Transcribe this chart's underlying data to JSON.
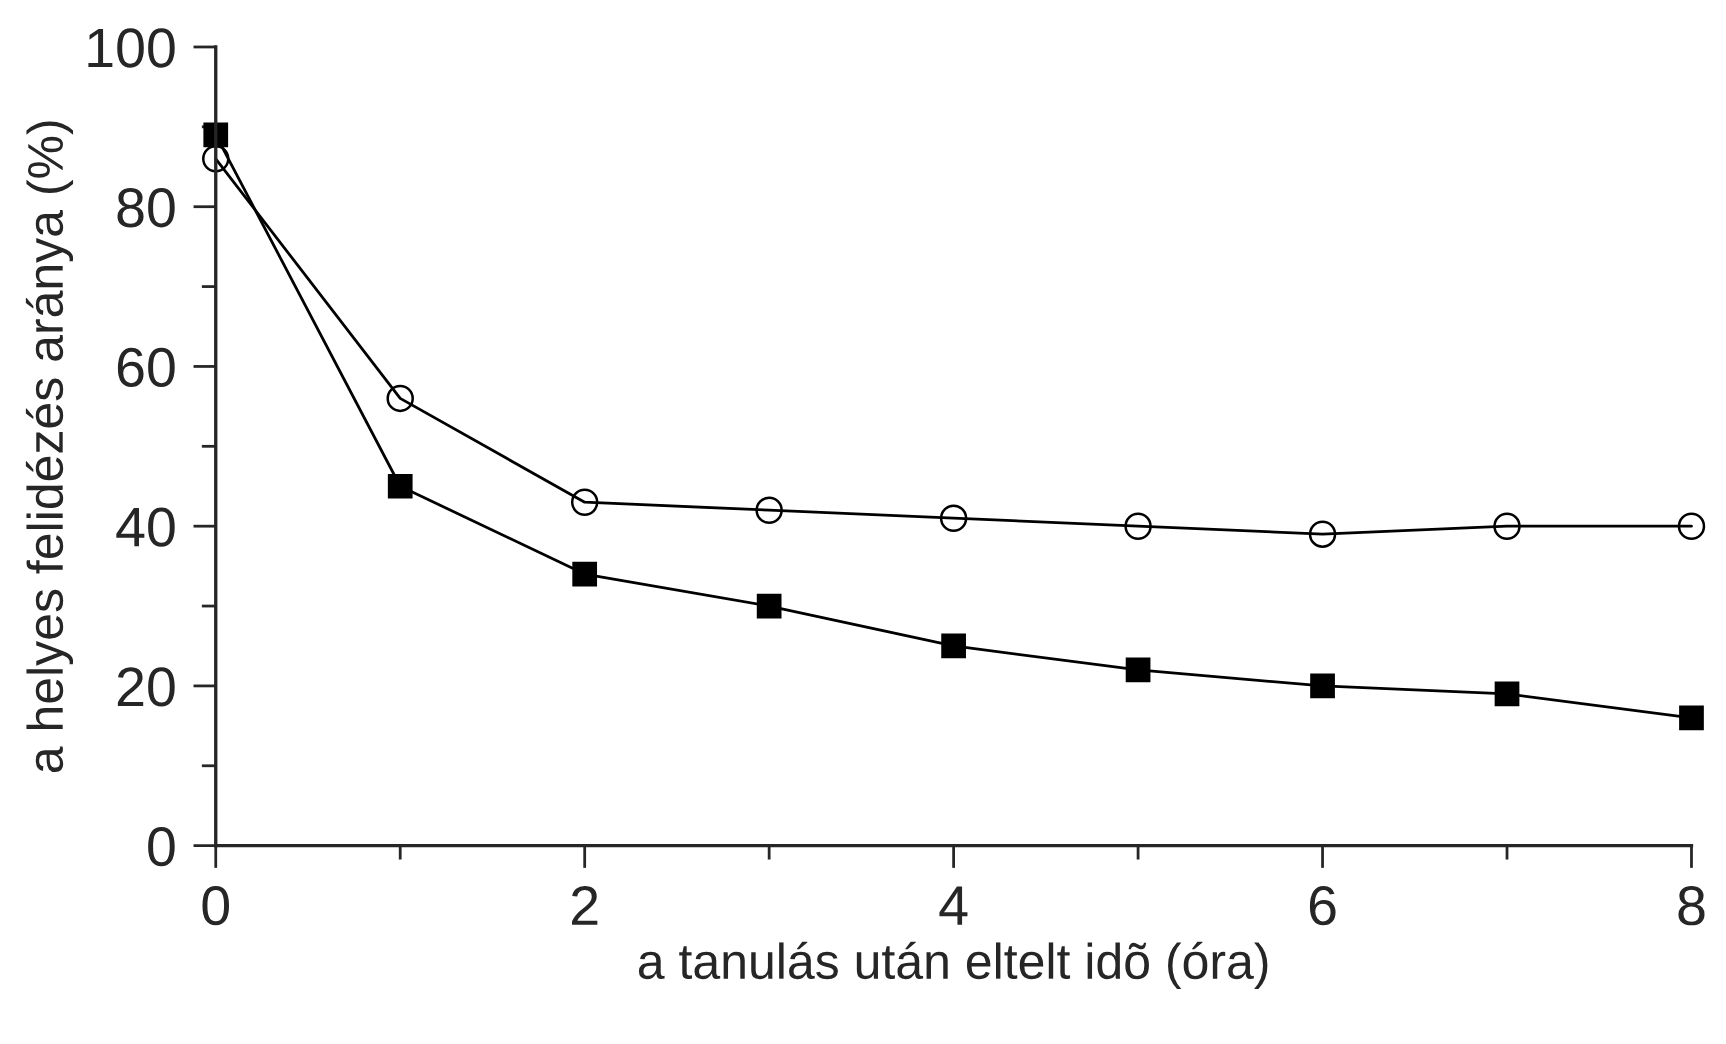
{
  "chart_data": {
    "type": "line",
    "xlabel": "a tanulás után eltelt idõ (óra)",
    "ylabel": "a helyes felidézés aránya (%)",
    "x": [
      0,
      1,
      2,
      3,
      4,
      5,
      6,
      7,
      8
    ],
    "series": [
      {
        "color": "#000000",
        "marker": "circle",
        "values": [
          86,
          56,
          43,
          42,
          41,
          40,
          39,
          40,
          40
        ]
      },
      {
        "color": "#000000",
        "marker": "square",
        "values": [
          89,
          45,
          34,
          30,
          25,
          22,
          20,
          19,
          16
        ]
      }
    ],
    "xlim": [
      0,
      8
    ],
    "xticks": [
      0,
      {
        "value": 1,
        "label": null
      },
      2,
      {
        "value": 3,
        "label": null
      },
      4,
      {
        "value": 5,
        "label": null
      },
      6,
      {
        "value": 7,
        "label": null
      },
      8
    ],
    "ylim": [
      0,
      100
    ],
    "yticks": [
      0,
      {
        "value": 10,
        "label": null
      },
      20,
      {
        "value": 30,
        "label": null
      },
      40,
      {
        "value": 50,
        "label": null
      },
      60,
      {
        "value": 70,
        "label": null
      },
      80,
      {
        "value": 90,
        "label": null
      },
      100
    ],
    "grid": false,
    "legend": false,
    "line_style": "solid"
  }
}
